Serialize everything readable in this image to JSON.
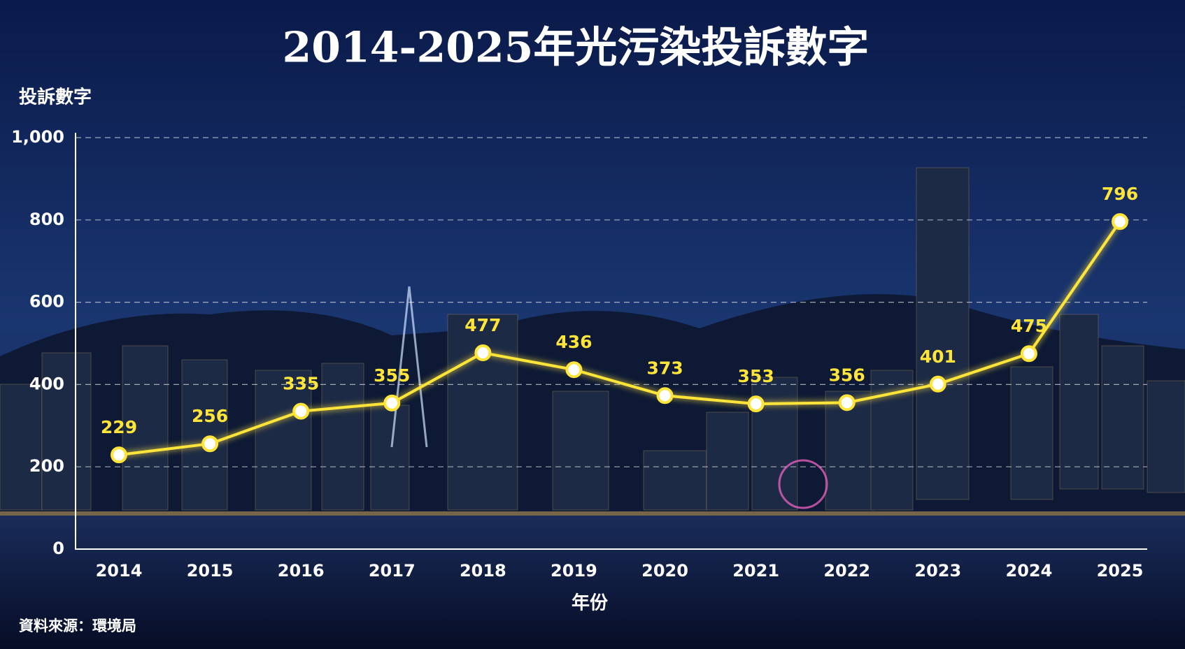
{
  "chart_data": {
    "type": "line",
    "title": "2014-2025年光污染投訴數字",
    "y_label": "投訴數字",
    "x_label": "年份",
    "source": "資料來源：環境局",
    "categories": [
      "2014",
      "2015",
      "2016",
      "2017",
      "2018",
      "2019",
      "2020",
      "2021",
      "2022",
      "2023",
      "2024",
      "2025"
    ],
    "series": [
      {
        "name": "投訴數字",
        "color": "#ffe43a",
        "values": [
          229,
          256,
          335,
          355,
          477,
          436,
          373,
          353,
          356,
          401,
          475,
          796
        ]
      }
    ],
    "ylim": [
      0,
      1000
    ],
    "yticks": [
      0,
      200,
      400,
      600,
      800,
      {
        "value": 1000,
        "label": "1,000"
      }
    ],
    "grid": true
  }
}
